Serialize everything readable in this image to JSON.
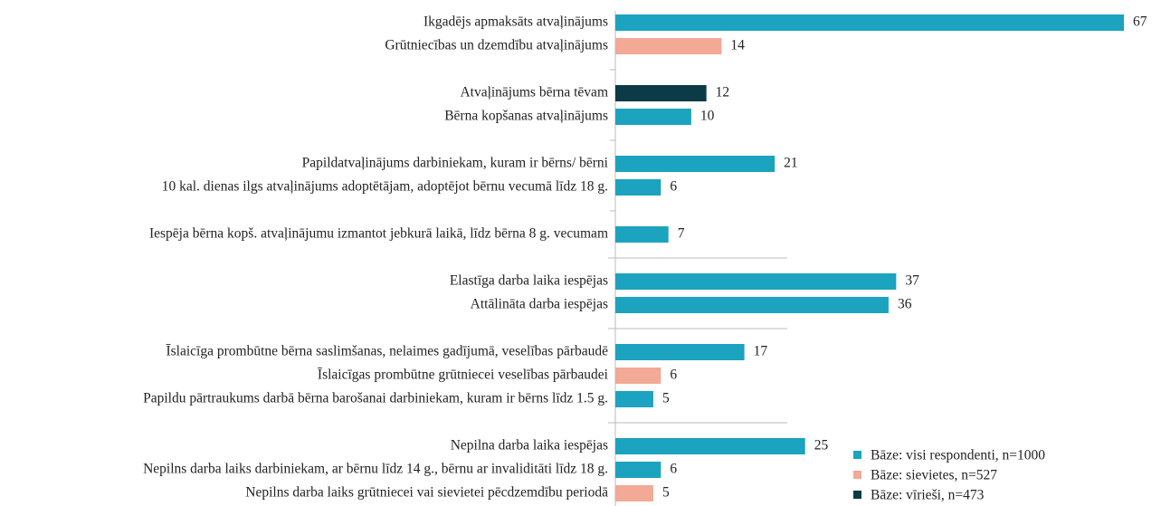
{
  "chart_data": {
    "type": "bar",
    "orientation": "horizontal",
    "categories": [
      "Ikgadējs apmaksāts atvaļinājums",
      "Grūtniecības un dzemdību atvaļinājums",
      null,
      "Atvaļinājums bērna tēvam",
      "Bērna kopšanas atvaļinājums",
      null,
      "Papildatvaļinājums darbiniekam, kuram ir bērns/ bērni",
      "10 kal. dienas ilgs atvaļinājums adoptētājam, adoptējot bērnu vecumā līdz 18 g.",
      null,
      "Iespēja bērna kopš. atvaļinājumu izmantot jebkurā laikā, līdz bērna 8 g. vecumam",
      null,
      "Elastīga darba laika iespējas",
      "Attālināta darba iespējas",
      null,
      "Īslaicīga prombūtne bērna saslimšanas, nelaimes gadījumā, veselības pārbaudē",
      "Īslaicīgas prombūtne grūtniecei veselības pārbaudei",
      "Papildu pārtraukums darbā bērna barošanai darbiniekam, kuram ir bērns līdz 1.5 g.",
      null,
      "Nepilna darba laika iespējas",
      "Nepilns darba laiks darbiniekam, ar bērnu līdz 14 g., bērnu ar invaliditāti līdz 18 g.",
      "Nepilns darba laiks grūtniecei vai sievietei pēcdzemdību periodā"
    ],
    "series": [
      {
        "name": "Bāze: visi respondenti, n=1000",
        "color": "#1ba3bf",
        "values": [
          67,
          null,
          null,
          null,
          10,
          null,
          21,
          6,
          null,
          7,
          null,
          37,
          36,
          null,
          17,
          null,
          5,
          null,
          25,
          6,
          null
        ]
      },
      {
        "name": "Bāze: sievietes, n=527",
        "color": "#f2a995",
        "values": [
          null,
          14,
          null,
          null,
          null,
          null,
          null,
          null,
          null,
          null,
          null,
          null,
          null,
          null,
          null,
          6,
          null,
          null,
          null,
          null,
          5
        ]
      },
      {
        "name": "Bāze: vīrieši, n=473",
        "color": "#0c3a46",
        "values": [
          null,
          null,
          null,
          12,
          null,
          null,
          null,
          null,
          null,
          null,
          null,
          null,
          null,
          null,
          null,
          null,
          null,
          null,
          null,
          null,
          null
        ]
      }
    ]
  }
}
